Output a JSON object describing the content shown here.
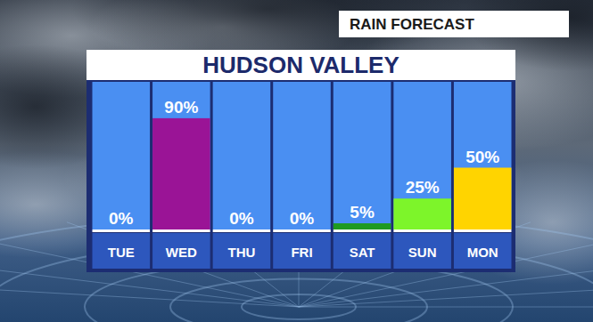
{
  "chart_data": {
    "type": "bar",
    "title": "HUDSON VALLEY",
    "subtitle": "RAIN FORECAST",
    "categories": [
      "TUE",
      "WED",
      "THU",
      "FRI",
      "SAT",
      "SUN",
      "MON"
    ],
    "values": [
      0,
      90,
      0,
      0,
      5,
      25,
      50
    ],
    "value_labels": [
      "0%",
      "90%",
      "0%",
      "0%",
      "5%",
      "25%",
      "50%"
    ],
    "colors": [
      "#ffffff",
      "#9a1496",
      "#ffffff",
      "#ffffff",
      "#1f9a1f",
      "#7df52a",
      "#ffd400"
    ],
    "ylim": [
      0,
      100
    ],
    "data_labels": true,
    "grid": false,
    "tick_labels": "x"
  }
}
